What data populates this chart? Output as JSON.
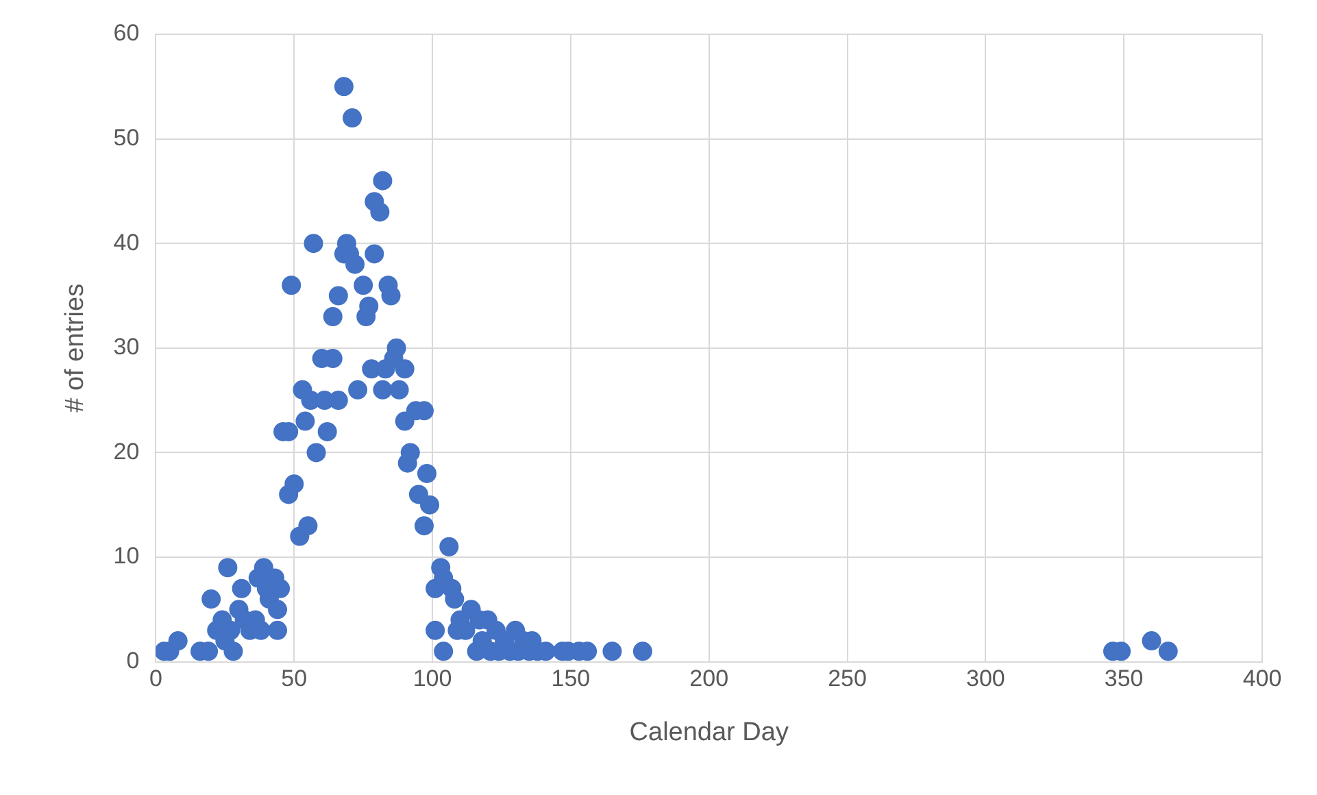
{
  "chart_data": {
    "type": "scatter",
    "xlabel": "Calendar Day",
    "ylabel": "# of entries",
    "marker": "circle",
    "grid": true,
    "legend": false,
    "xlim": [
      0,
      400
    ],
    "xticks": [
      0,
      50,
      100,
      150,
      200,
      250,
      300,
      350,
      400
    ],
    "ylim": [
      0,
      60
    ],
    "yticks": [
      0,
      10,
      20,
      30,
      40,
      50,
      60
    ],
    "series": [
      {
        "color": "#4472c4",
        "x": [
          3,
          5,
          8,
          16,
          19,
          20,
          22,
          24,
          25,
          26,
          27,
          28,
          30,
          31,
          32,
          34,
          36,
          37,
          38,
          39,
          40,
          41,
          43,
          44,
          44,
          45,
          46,
          48,
          48,
          49,
          50,
          52,
          53,
          54,
          55,
          56,
          57,
          58,
          60,
          61,
          62,
          64,
          64,
          66,
          66,
          68,
          68,
          69,
          70,
          71,
          72,
          73,
          75,
          76,
          77,
          78,
          79,
          79,
          81,
          82,
          82,
          83,
          84,
          85,
          86,
          87,
          88,
          90,
          90,
          91,
          92,
          94,
          95,
          97,
          97,
          98,
          99,
          101,
          101,
          103,
          104,
          104,
          106,
          107,
          108,
          109,
          110,
          112,
          114,
          116,
          117,
          118,
          120,
          121,
          123,
          124,
          126,
          128,
          130,
          131,
          133,
          135,
          136,
          138,
          141,
          147,
          149,
          153,
          156,
          165,
          176,
          346,
          349,
          360,
          366
        ],
        "values": [
          1,
          1,
          2,
          1,
          1,
          6,
          3,
          4,
          2,
          9,
          3,
          1,
          5,
          7,
          4,
          3,
          4,
          8,
          3,
          9,
          7,
          6,
          8,
          3,
          5,
          7,
          22,
          22,
          16,
          36,
          17,
          12,
          26,
          23,
          13,
          25,
          40,
          20,
          29,
          25,
          22,
          29,
          33,
          25,
          35,
          55,
          39,
          40,
          39,
          52,
          38,
          26,
          36,
          33,
          34,
          28,
          44,
          39,
          43,
          46,
          26,
          28,
          36,
          35,
          29,
          30,
          26,
          28,
          23,
          19,
          20,
          24,
          16,
          24,
          13,
          18,
          15,
          7,
          3,
          9,
          1,
          8,
          11,
          7,
          6,
          3,
          4,
          3,
          5,
          1,
          4,
          2,
          4,
          1,
          3,
          1,
          2,
          1,
          3,
          1,
          2,
          1,
          2,
          1,
          1,
          1,
          1,
          1,
          1,
          1,
          1,
          1,
          1,
          2,
          1
        ]
      }
    ]
  }
}
